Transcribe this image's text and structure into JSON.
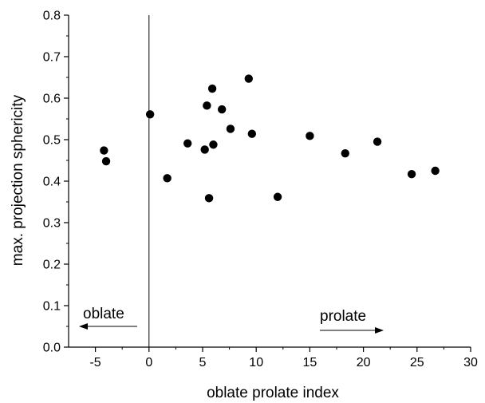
{
  "chart_data": {
    "type": "scatter",
    "title": "",
    "xlabel": "oblate prolate index",
    "ylabel": "max. projection sphericity",
    "xlim": [
      -7.5,
      30
    ],
    "ylim": [
      0,
      0.8
    ],
    "x_ticks": [
      -5,
      0,
      5,
      10,
      15,
      20,
      25,
      30
    ],
    "y_ticks": [
      0.0,
      0.1,
      0.2,
      0.3,
      0.4,
      0.5,
      0.6,
      0.7,
      0.8
    ],
    "x_tick_labels": [
      "-5",
      "0",
      "5",
      "10",
      "15",
      "20",
      "25",
      "30"
    ],
    "y_tick_labels": [
      "0.0",
      "0.1",
      "0.2",
      "0.3",
      "0.4",
      "0.5",
      "0.6",
      "0.7",
      "0.8"
    ],
    "grid": false,
    "legend": "none",
    "marker_color": "#000000",
    "reference_line_x": 0,
    "points": [
      {
        "x": -4.2,
        "y": 0.474
      },
      {
        "x": -4.0,
        "y": 0.448
      },
      {
        "x": 0.1,
        "y": 0.561
      },
      {
        "x": 1.7,
        "y": 0.407
      },
      {
        "x": 3.6,
        "y": 0.491
      },
      {
        "x": 5.2,
        "y": 0.476
      },
      {
        "x": 5.4,
        "y": 0.582
      },
      {
        "x": 5.6,
        "y": 0.359
      },
      {
        "x": 5.9,
        "y": 0.623
      },
      {
        "x": 6.0,
        "y": 0.488
      },
      {
        "x": 6.8,
        "y": 0.573
      },
      {
        "x": 7.6,
        "y": 0.526
      },
      {
        "x": 9.3,
        "y": 0.647
      },
      {
        "x": 9.6,
        "y": 0.514
      },
      {
        "x": 12.0,
        "y": 0.362
      },
      {
        "x": 15.0,
        "y": 0.509
      },
      {
        "x": 18.3,
        "y": 0.467
      },
      {
        "x": 21.3,
        "y": 0.495
      },
      {
        "x": 24.5,
        "y": 0.417
      },
      {
        "x": 26.7,
        "y": 0.425
      }
    ],
    "annotations": [
      {
        "text": "oblate",
        "direction": "left"
      },
      {
        "text": "prolate",
        "direction": "right"
      }
    ]
  }
}
